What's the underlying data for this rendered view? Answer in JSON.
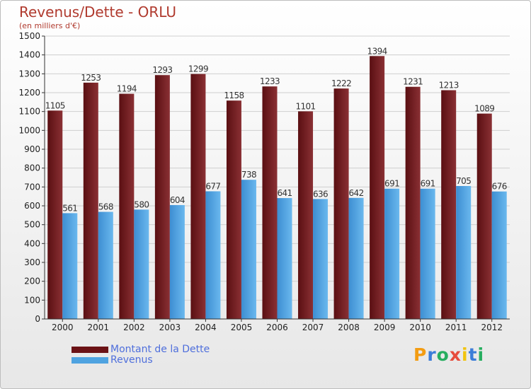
{
  "header": {
    "title": "Revenus/Dette - ORLU",
    "subtitle": "(en milliers d'€)"
  },
  "chart_data": {
    "type": "bar",
    "title": "Revenus/Dette - ORLU",
    "subtitle": "(en milliers d'€)",
    "xlabel": "",
    "ylabel": "",
    "ylim": [
      0,
      1500
    ],
    "y_ticks": [
      0,
      100,
      200,
      300,
      400,
      500,
      600,
      700,
      800,
      900,
      1000,
      1100,
      1200,
      1300,
      1400,
      1500
    ],
    "grid": true,
    "legend_position": "bottom-left",
    "categories": [
      "2000",
      "2001",
      "2002",
      "2003",
      "2004",
      "2005",
      "2006",
      "2007",
      "2008",
      "2009",
      "2010",
      "2011",
      "2012"
    ],
    "series": [
      {
        "name": "Montant de la Dette",
        "color": "#7a1f22",
        "values": [
          1105,
          1253,
          1194,
          1293,
          1299,
          1158,
          1233,
          1101,
          1222,
          1394,
          1231,
          1213,
          1089
        ]
      },
      {
        "name": "Revenus",
        "color": "#4fa3e0",
        "values": [
          561,
          568,
          580,
          604,
          677,
          738,
          641,
          636,
          642,
          691,
          691,
          705,
          676
        ]
      }
    ]
  },
  "legend": {
    "items": [
      {
        "label": "Montant de la Dette",
        "color": "#7a1f22"
      },
      {
        "label": "Revenus",
        "color": "#4fa3e0"
      }
    ]
  },
  "logo": {
    "letters": [
      "P",
      "r",
      "o",
      "x",
      "i",
      "t",
      "i"
    ],
    "colors": [
      "#f39c12",
      "#3b7dd8",
      "#27ae60",
      "#e74c3c",
      "#f1c40f",
      "#3b7dd8",
      "#27ae60"
    ]
  }
}
